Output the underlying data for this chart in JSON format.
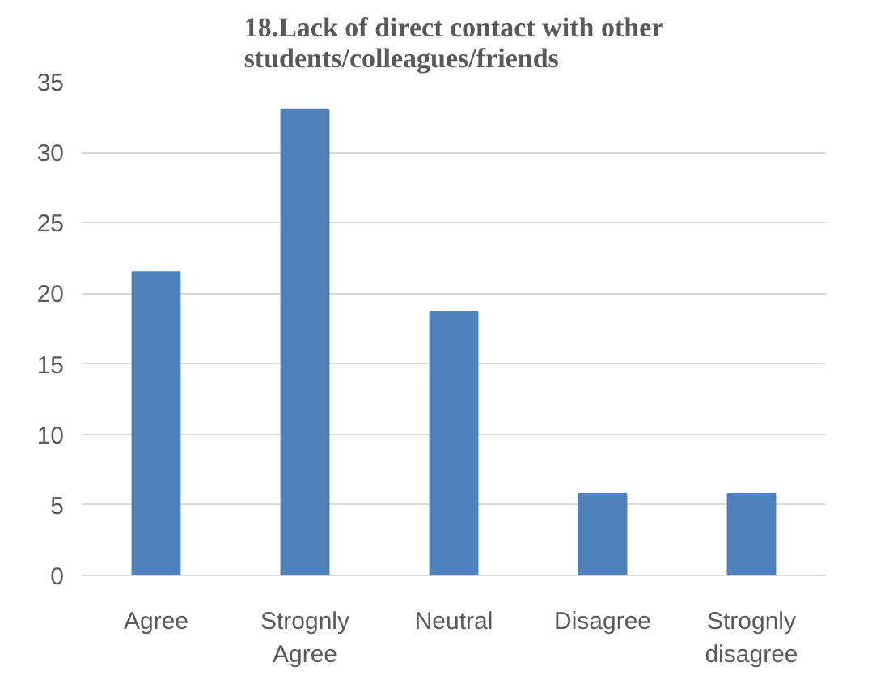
{
  "chart_data": {
    "type": "bar",
    "title": "18.Lack of direct contact with other students/colleagues/friends",
    "categories": [
      "Agree",
      "Strognly Agree",
      "Neutral",
      "Disagree",
      "Strognly disagree"
    ],
    "values": [
      21.5,
      33.0,
      18.7,
      5.8,
      5.8
    ],
    "color": "#4f81bd",
    "ylim": [
      0,
      35
    ],
    "yticks": [
      0,
      5,
      10,
      15,
      20,
      25,
      30,
      35
    ],
    "grid": "y"
  }
}
